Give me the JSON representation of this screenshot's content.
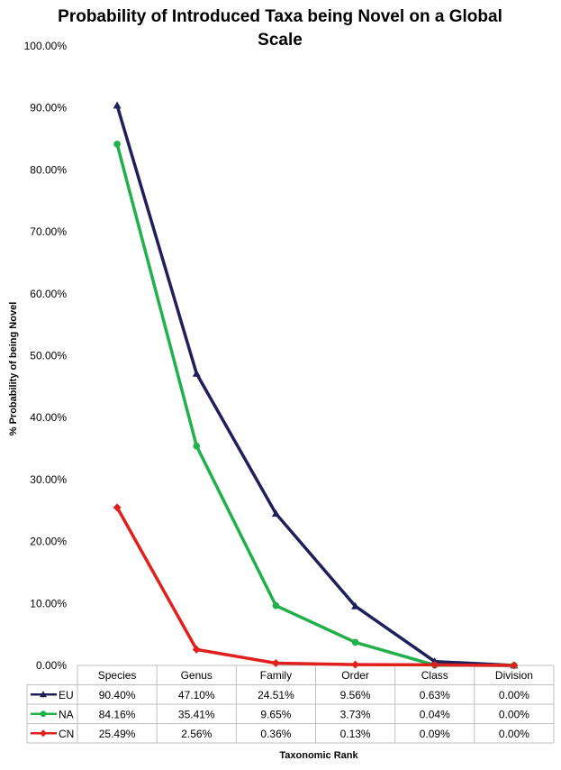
{
  "chart_data": {
    "type": "line",
    "title_line1": "Probability of Introduced Taxa being Novel on a Global",
    "title_line2": "Scale",
    "xlabel": "Taxonomic Rank",
    "ylabel": "% Probability of being Novel",
    "ylim": [
      0,
      100
    ],
    "yticks": [
      "0.00%",
      "10.00%",
      "20.00%",
      "30.00%",
      "40.00%",
      "50.00%",
      "60.00%",
      "70.00%",
      "80.00%",
      "90.00%",
      "100.00%"
    ],
    "categories": [
      "Species",
      "Genus",
      "Family",
      "Order",
      "Class",
      "Division"
    ],
    "grid": false,
    "legend": "data-table",
    "series": [
      {
        "name": "EU",
        "color": "#1f1f5c",
        "marker": "triangle",
        "values": [
          90.4,
          47.1,
          24.51,
          9.56,
          0.63,
          0.0
        ],
        "labels": [
          "90.40%",
          "47.10%",
          "24.51%",
          "9.56%",
          "0.63%",
          "0.00%"
        ]
      },
      {
        "name": "NA",
        "color": "#22b04a",
        "marker": "circle",
        "values": [
          84.16,
          35.41,
          9.65,
          3.73,
          0.04,
          0.0
        ],
        "labels": [
          "84.16%",
          "35.41%",
          "9.65%",
          "3.73%",
          "0.04%",
          "0.00%"
        ]
      },
      {
        "name": "CN",
        "color": "#e0201c",
        "marker": "diamond",
        "values": [
          25.49,
          2.56,
          0.36,
          0.13,
          0.09,
          0.0
        ],
        "labels": [
          "25.49%",
          "2.56%",
          "0.36%",
          "0.13%",
          "0.09%",
          "0.00%"
        ]
      }
    ]
  }
}
